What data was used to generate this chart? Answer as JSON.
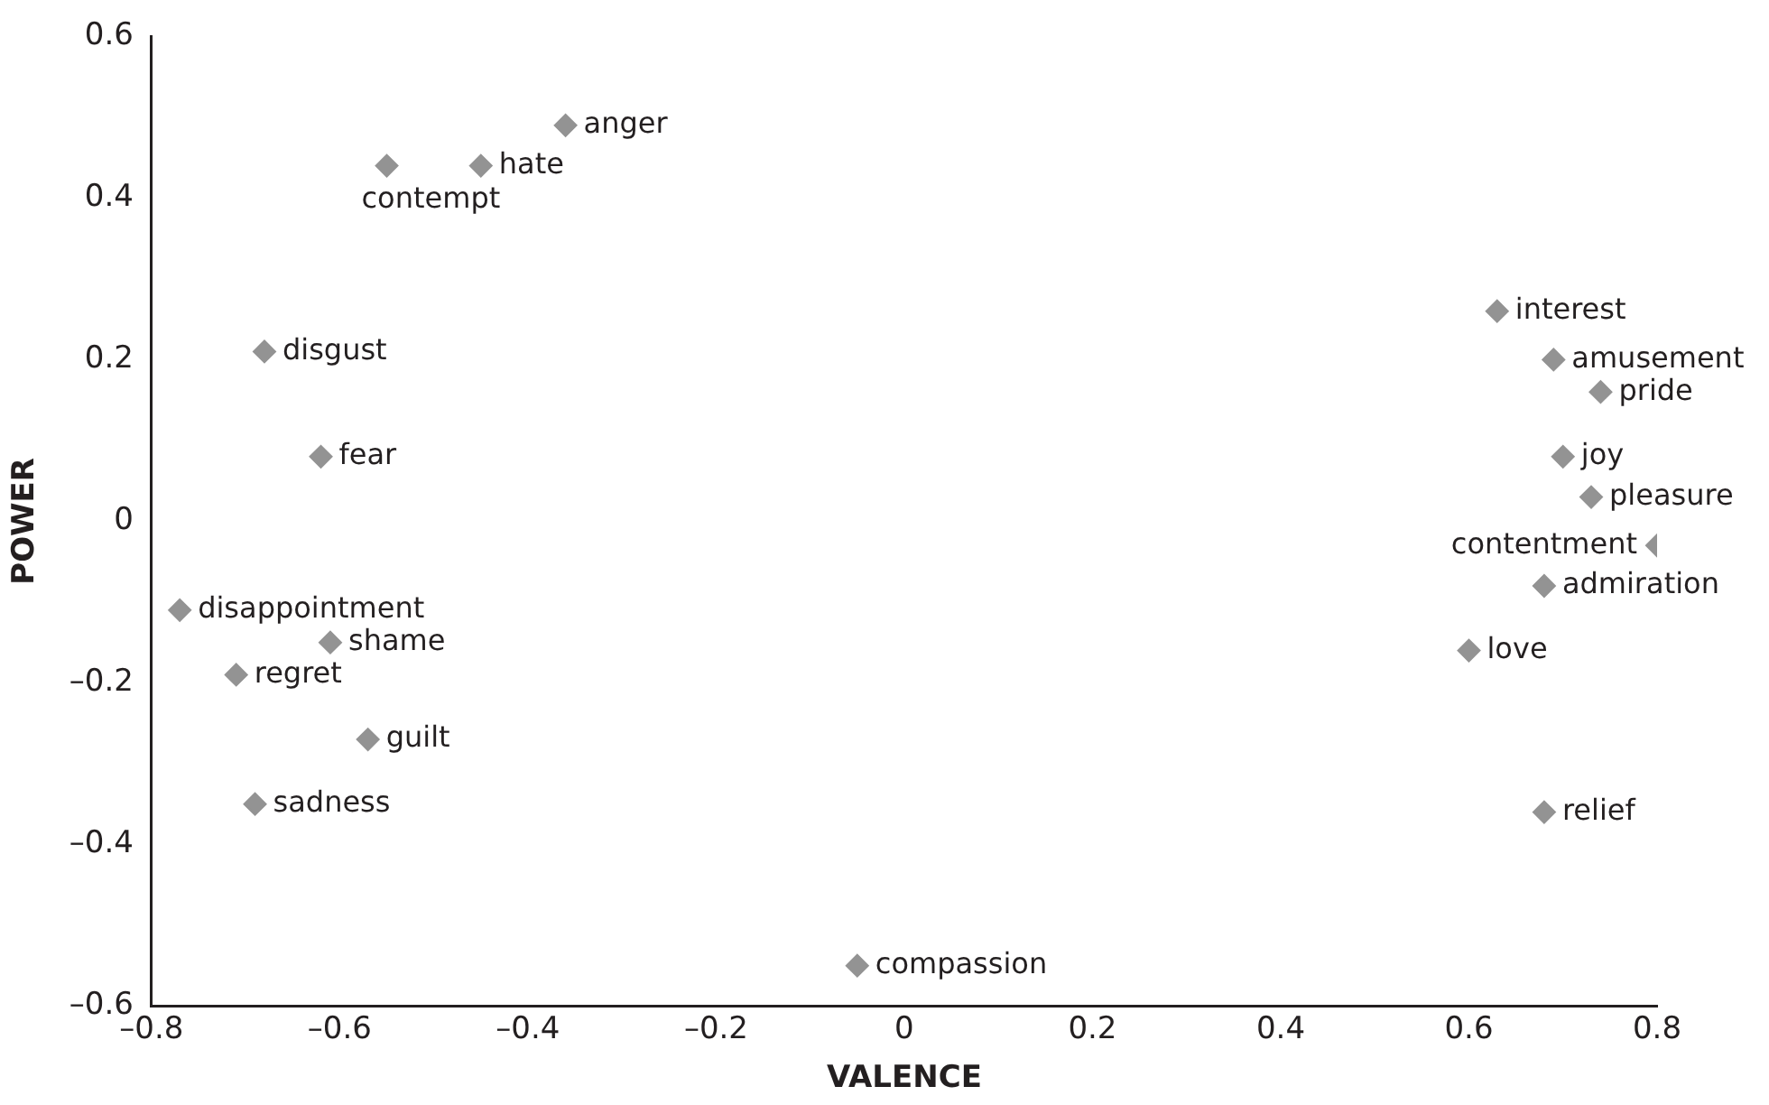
{
  "chart_data": {
    "type": "scatter",
    "xlabel": "VALENCE",
    "ylabel": "POWER",
    "marker": "diamond",
    "grid": false,
    "legend": false,
    "xlim": [
      -0.8,
      0.8
    ],
    "xticks": [
      {
        "value": -0.8,
        "label": "–0.8"
      },
      {
        "value": -0.6,
        "label": "–0.6"
      },
      {
        "value": -0.4,
        "label": "–0.4"
      },
      {
        "value": -0.2,
        "label": "–0.2"
      },
      0,
      0.2,
      0.4,
      0.6,
      0.8
    ],
    "ylim": [
      -0.6,
      0.6
    ],
    "yticks": [
      {
        "value": -0.6,
        "label": "–0.6"
      },
      {
        "value": -0.4,
        "label": "–0.4"
      },
      {
        "value": -0.2,
        "label": "–0.2"
      },
      0,
      0.2,
      0.4,
      0.6
    ],
    "series": [
      {
        "color": "#939393",
        "x": [
          -0.36,
          -0.55,
          -0.45,
          -0.68,
          -0.62,
          -0.77,
          -0.61,
          -0.71,
          -0.57,
          -0.69,
          -0.05,
          0.63,
          0.69,
          0.74,
          0.7,
          0.73,
          0.8,
          0.68,
          0.6,
          0.68
        ],
        "values": [
          0.49,
          0.44,
          0.44,
          0.21,
          0.08,
          -0.11,
          -0.15,
          -0.19,
          -0.27,
          -0.35,
          -0.55,
          0.26,
          0.2,
          0.16,
          0.08,
          0.03,
          -0.03,
          -0.08,
          -0.16,
          -0.36
        ]
      }
    ],
    "annotations": [
      {
        "text": "anger",
        "x": -0.36,
        "y": 0.49
      },
      {
        "text": "contempt",
        "x": -0.55,
        "y": 0.44
      },
      {
        "text": "hate",
        "x": -0.45,
        "y": 0.44
      },
      {
        "text": "disgust",
        "x": -0.68,
        "y": 0.21
      },
      {
        "text": "fear",
        "x": -0.62,
        "y": 0.08
      },
      {
        "text": "disappointment",
        "x": -0.77,
        "y": -0.11
      },
      {
        "text": "shame",
        "x": -0.61,
        "y": -0.15
      },
      {
        "text": "regret",
        "x": -0.71,
        "y": -0.19
      },
      {
        "text": "guilt",
        "x": -0.57,
        "y": -0.27
      },
      {
        "text": "sadness",
        "x": -0.69,
        "y": -0.35
      },
      {
        "text": "compassion",
        "x": -0.05,
        "y": -0.55
      },
      {
        "text": "interest",
        "x": 0.63,
        "y": 0.26
      },
      {
        "text": "amusement",
        "x": 0.69,
        "y": 0.2
      },
      {
        "text": "pride",
        "x": 0.74,
        "y": 0.16
      },
      {
        "text": "joy",
        "x": 0.7,
        "y": 0.08
      },
      {
        "text": "pleasure",
        "x": 0.73,
        "y": 0.03
      },
      {
        "text": "contentment",
        "x": 0.8,
        "y": -0.03
      },
      {
        "text": "admiration",
        "x": 0.68,
        "y": -0.08
      },
      {
        "text": "love",
        "x": 0.6,
        "y": -0.16
      },
      {
        "text": "relief",
        "x": 0.68,
        "y": -0.36
      }
    ]
  }
}
